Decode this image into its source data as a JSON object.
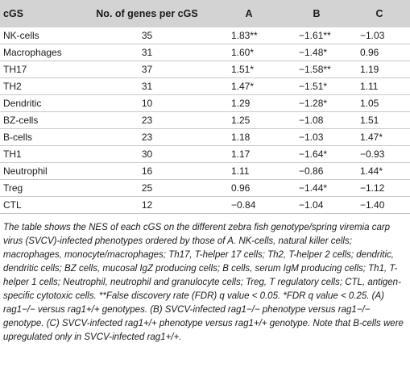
{
  "table": {
    "headers": [
      "cGS",
      "No. of genes per cGS",
      "A",
      "B",
      "C"
    ],
    "rows": [
      {
        "cgs": "NK-cells",
        "genes": "35",
        "a": "1.83**",
        "b": "−1.61**",
        "c": "−1.03"
      },
      {
        "cgs": "Macrophages",
        "genes": "31",
        "a": "1.60*",
        "b": "−1.48*",
        "c": "0.96"
      },
      {
        "cgs": "TH17",
        "genes": "37",
        "a": "1.51*",
        "b": "−1.58**",
        "c": "1.19"
      },
      {
        "cgs": "TH2",
        "genes": "31",
        "a": "1.47*",
        "b": "−1.51*",
        "c": "1.11"
      },
      {
        "cgs": "Dendritic",
        "genes": "10",
        "a": "1.29",
        "b": "−1.28*",
        "c": "1.05"
      },
      {
        "cgs": "BZ-cells",
        "genes": "23",
        "a": "1.25",
        "b": "−1.08",
        "c": "1.51"
      },
      {
        "cgs": "B-cells",
        "genes": "23",
        "a": "1.18",
        "b": "−1.03",
        "c": "1.47*"
      },
      {
        "cgs": "TH1",
        "genes": "30",
        "a": "1.17",
        "b": "−1.64*",
        "c": "−0.93"
      },
      {
        "cgs": "Neutrophil",
        "genes": "16",
        "a": "1.11",
        "b": "−0.86",
        "c": "1.44*"
      },
      {
        "cgs": "Treg",
        "genes": "25",
        "a": "0.96",
        "b": "−1.44*",
        "c": "−1.12"
      },
      {
        "cgs": "CTL",
        "genes": "12",
        "a": "−0.84",
        "b": "−1.04",
        "c": "−1.40"
      }
    ]
  },
  "footnote": {
    "text": "The table shows the NES of each cGS on the different zebra fish genotype/spring viremia carp virus (SVCV)-infected phenotypes ordered by those of A. NK-cells, natural killer cells; macrophages, monocyte/macrophages; Th17, T-helper 17 cells; Th2, T-helper 2 cells; dendritic, dendritic cells; BZ cells, mucosal IgZ producing cells; B cells, serum IgM producing cells; Th1, T-helper 1 cells; Neutrophil, neutrophil and granulocyte cells; Treg, T regulatory cells; CTL, antigen-specific cytotoxic cells. **False discovery rate (FDR) q value < 0.05. *FDR q value < 0.25. (A) rag1−/− versus rag1+/+ genotypes. (B) SVCV-infected rag1−/− phenotype versus rag1−/− genotype. (C) SVCV-infected rag1+/+ phenotype versus rag1+/+ genotype. Note that B-cells were upregulated only in SVCV-infected rag1+/+."
  }
}
